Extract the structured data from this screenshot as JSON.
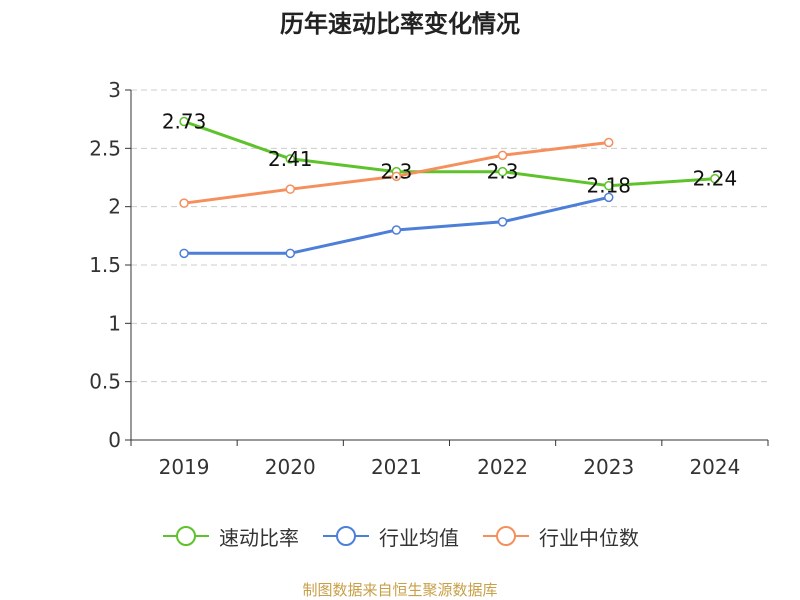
{
  "title": "历年速动比率变化情况",
  "source_note": "制图数据来自恒生聚源数据库",
  "chart_data": {
    "type": "line",
    "title": "历年速动比率变化情况",
    "categories": [
      "2019",
      "2020",
      "2021",
      "2022",
      "2023",
      "2024"
    ],
    "ylim": [
      0,
      3
    ],
    "yticks": [
      0,
      0.5,
      1,
      1.5,
      2,
      2.5,
      3
    ],
    "ytick_labels": [
      "0",
      "0.5",
      "1",
      "1.5",
      "2",
      "2.5",
      "3"
    ],
    "grid": "horizontal dashed",
    "legend_position": "bottom",
    "series": [
      {
        "name": "速动比率",
        "color": "#5ec22b",
        "values": [
          2.73,
          2.41,
          2.3,
          2.3,
          2.18,
          2.24
        ],
        "labels": [
          "2.73",
          "2.41",
          "2.3",
          "2.3",
          "2.18",
          "2.24"
        ],
        "show_labels": true
      },
      {
        "name": "行业均值",
        "color": "#4e7fd8",
        "values": [
          1.6,
          1.6,
          1.8,
          1.87,
          2.08,
          null
        ],
        "show_labels": false
      },
      {
        "name": "行业中位数",
        "color": "#f58f5c",
        "values": [
          2.03,
          2.15,
          2.26,
          2.44,
          2.55,
          null
        ],
        "show_labels": false
      }
    ]
  }
}
